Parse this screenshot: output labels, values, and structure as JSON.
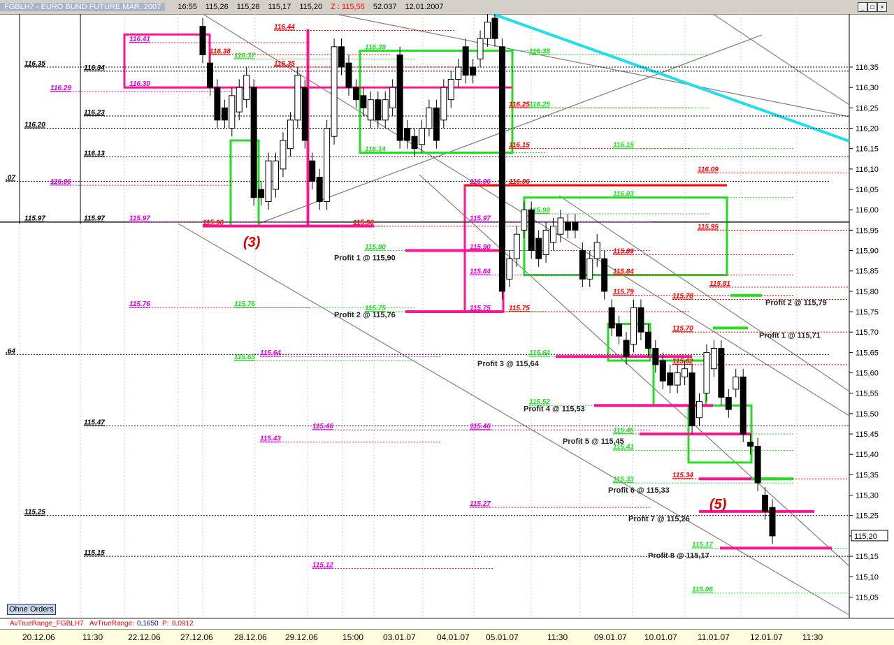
{
  "window": {
    "title": "FGBLH7 - EURO BUND FUTURE MAR. 2007",
    "time": "16:55",
    "open": "115,26",
    "high": "115,28",
    "low": "115,17",
    "close": "115,20",
    "z_label": "Z :",
    "z_value": "115,55",
    "volume": "52.037",
    "date": "12.01.2007"
  },
  "button_ohne_orders": "Ohne Orders",
  "indicator": {
    "name": "AvTrueRange_FGBLH7",
    "label": "AvTrueRange:",
    "value": "0,1650",
    "p_label": "P:",
    "p_value": "8,0912"
  },
  "chart_data": {
    "type": "candlestick",
    "y_ticks": [
      "116,35",
      "116,30",
      "116,25",
      "116,20",
      "116,15",
      "116,10",
      "116,05",
      "116,00",
      "115,95",
      "115,90",
      "115,85",
      "115,80",
      "115,75",
      "115,70",
      "115,65",
      "115,60",
      "115,55",
      "115,50",
      "115,45",
      "115,40",
      "115,35",
      "115,30",
      "115,25",
      "115,20",
      "115,15",
      "115,10",
      "115,05"
    ],
    "last_price": "115,20",
    "ylim": [
      115.03,
      116.48
    ],
    "x_ticks": [
      "20.12.06",
      "11:30",
      "22.12.06",
      "27.12.06",
      "28.12.06",
      "29.12.06",
      "15:00",
      "03.01.07",
      "04.01.07",
      "05.01.07",
      "11:30",
      "09.01.07",
      "10.01.07",
      "11.01.07",
      "12.01.07",
      "11:30"
    ],
    "candles": [
      [
        116.45,
        116.38
      ],
      [
        116.36,
        116.3
      ],
      [
        116.3,
        116.22
      ],
      [
        116.25,
        116.22
      ],
      [
        116.2,
        116.28
      ],
      [
        116.24,
        116.3
      ],
      [
        116.27,
        116.33
      ],
      [
        116.3,
        116.03
      ],
      [
        116.05,
        116.03
      ],
      [
        116.02,
        116.12
      ],
      [
        116.05,
        116.12
      ],
      [
        116.1,
        116.17
      ],
      [
        116.15,
        116.22
      ],
      [
        116.22,
        116.33
      ],
      [
        116.3,
        116.17
      ],
      [
        116.12,
        116.07
      ],
      [
        116.08,
        116.02
      ],
      [
        116.02,
        116.2
      ],
      [
        116.18,
        116.4
      ],
      [
        116.4,
        116.35
      ],
      [
        116.36,
        116.3
      ],
      [
        116.3,
        116.27
      ],
      [
        116.28,
        116.25
      ],
      [
        116.22,
        116.27
      ],
      [
        116.27,
        116.22
      ],
      [
        116.22,
        116.27
      ],
      [
        116.25,
        116.3
      ],
      [
        116.38,
        116.17
      ],
      [
        116.2,
        116.17
      ],
      [
        116.18,
        116.15
      ],
      [
        116.16,
        116.2
      ],
      [
        116.2,
        116.25
      ],
      [
        116.25,
        116.17
      ],
      [
        116.22,
        116.3
      ],
      [
        116.27,
        116.32
      ],
      [
        116.32,
        116.35
      ],
      [
        116.4,
        116.33
      ],
      [
        116.35,
        116.33
      ],
      [
        116.37,
        116.42
      ],
      [
        116.42,
        116.46
      ],
      [
        116.47,
        116.42
      ],
      [
        116.4,
        115.8
      ],
      [
        115.83,
        115.88
      ],
      [
        115.88,
        115.94
      ],
      [
        115.95,
        116.0
      ],
      [
        116.0,
        115.9
      ],
      [
        115.93,
        115.88
      ],
      [
        115.89,
        115.95
      ],
      [
        115.92,
        115.96
      ],
      [
        115.94,
        115.98
      ],
      [
        115.97,
        115.95
      ],
      [
        115.97,
        115.95
      ],
      [
        115.9,
        115.83
      ],
      [
        115.83,
        115.88
      ],
      [
        115.88,
        115.92
      ],
      [
        115.88,
        115.8
      ],
      [
        115.76,
        115.71
      ],
      [
        115.72,
        115.69
      ],
      [
        115.68,
        115.64
      ],
      [
        115.67,
        115.76
      ],
      [
        115.76,
        115.7
      ],
      [
        115.7,
        115.66
      ],
      [
        115.66,
        115.62
      ],
      [
        115.63,
        115.58
      ],
      [
        115.6,
        115.57
      ],
      [
        115.57,
        115.6
      ],
      [
        115.59,
        115.61
      ],
      [
        115.6,
        115.47
      ],
      [
        115.49,
        115.53
      ],
      [
        115.55,
        115.65
      ],
      [
        115.61,
        115.66
      ],
      [
        115.66,
        115.54
      ],
      [
        115.54,
        115.51
      ],
      [
        115.56,
        115.59
      ],
      [
        115.59,
        115.45
      ],
      [
        115.43,
        115.42
      ],
      [
        115.42,
        115.33
      ],
      [
        115.3,
        115.26
      ],
      [
        115.27,
        115.2
      ]
    ],
    "levels": [
      {
        "label": "116.35",
        "price": 116.35,
        "color": "#000000"
      },
      {
        "label": "116.20",
        "price": 116.2,
        "color": "#000000"
      },
      {
        "label": "115.97",
        "price": 115.97,
        "color": "#000000"
      },
      {
        "label": "115.25",
        "price": 115.25,
        "color": "#000000"
      },
      {
        "label": "116.34",
        "price": 116.34,
        "color": "#000000"
      },
      {
        "label": "116.23",
        "price": 116.23,
        "color": "#000000"
      },
      {
        "label": "116.13",
        "price": 116.13,
        "color": "#000000"
      },
      {
        "label": "115.97",
        "price": 115.97,
        "color": "#000000"
      },
      {
        "label": "115.47",
        "price": 115.47,
        "color": "#000000"
      },
      {
        "label": "115.15",
        "price": 115.15,
        "color": "#000000"
      },
      {
        "label": ".07",
        "price": 116.07,
        "color": "#000000"
      },
      {
        "label": ".64",
        "price": 115.645,
        "color": "#000000"
      },
      {
        "label": "116.41",
        "price": 116.41,
        "color": "#e000e0"
      },
      {
        "label": "116.29",
        "price": 116.29,
        "color": "#e000e0"
      },
      {
        "label": "116.06",
        "price": 116.06,
        "color": "#e000e0"
      },
      {
        "label": "116.30",
        "price": 116.3,
        "color": "#e000e0"
      },
      {
        "label": "115.97",
        "price": 115.97,
        "color": "#e000e0"
      },
      {
        "label": "115.76",
        "price": 115.76,
        "color": "#e000e0"
      },
      {
        "label": "115.43",
        "price": 115.43,
        "color": "#e000e0"
      },
      {
        "label": "115.46",
        "price": 115.46,
        "color": "#e000e0"
      },
      {
        "label": "115.12",
        "price": 115.12,
        "color": "#e000e0"
      },
      {
        "label": "115.64",
        "price": 115.64,
        "color": "#e000e0"
      },
      {
        "label": "115.97",
        "price": 115.97,
        "color": "#e000e0"
      },
      {
        "label": "115.90",
        "price": 115.9,
        "color": "#e000e0"
      },
      {
        "label": "115.84",
        "price": 115.84,
        "color": "#e000e0"
      },
      {
        "label": "115.75",
        "price": 115.75,
        "color": "#e000e0"
      },
      {
        "label": "115.46",
        "price": 115.46,
        "color": "#e000e0"
      },
      {
        "label": "115.27",
        "price": 115.27,
        "color": "#e000e0"
      },
      {
        "label": "116.06",
        "price": 116.06,
        "color": "#e000e0"
      },
      {
        "label": "116.44",
        "price": 116.44,
        "color": "#ff0000"
      },
      {
        "label": "116.38",
        "price": 116.38,
        "color": "#ff0000"
      },
      {
        "label": "116.35",
        "price": 116.35,
        "color": "#ff0000"
      },
      {
        "label": "116.25",
        "price": 116.25,
        "color": "#ff0000"
      },
      {
        "label": "116.15",
        "price": 116.15,
        "color": "#ff0000"
      },
      {
        "label": "116.06",
        "price": 116.06,
        "color": "#ff0000"
      },
      {
        "label": "115.96",
        "price": 115.96,
        "color": "#ff0000"
      },
      {
        "label": "115.96",
        "price": 115.96,
        "color": "#ff0000"
      },
      {
        "label": "115.75",
        "price": 115.75,
        "color": "#ff0000"
      },
      {
        "label": "116.09",
        "price": 116.09,
        "color": "#ff0000"
      },
      {
        "label": "115.95",
        "price": 115.95,
        "color": "#ff0000"
      },
      {
        "label": "115.89",
        "price": 115.89,
        "color": "#ff0000"
      },
      {
        "label": "115.84",
        "price": 115.84,
        "color": "#ff0000"
      },
      {
        "label": "115.79",
        "price": 115.79,
        "color": "#ff0000"
      },
      {
        "label": "115.78",
        "price": 115.78,
        "color": "#ff0000"
      },
      {
        "label": "115.70",
        "price": 115.7,
        "color": "#ff0000"
      },
      {
        "label": "115.62",
        "price": 115.62,
        "color": "#ff0000"
      },
      {
        "label": "115.81",
        "price": 115.81,
        "color": "#ff0000"
      },
      {
        "label": "115.34",
        "price": 115.34,
        "color": "#ff0000"
      },
      {
        "label": "116.37",
        "price": 116.37,
        "color": "#22dd22"
      },
      {
        "label": "116.39",
        "price": 116.39,
        "color": "#22dd22"
      },
      {
        "label": "116.38",
        "price": 116.38,
        "color": "#22dd22"
      },
      {
        "label": "116.25",
        "price": 116.25,
        "color": "#22dd22"
      },
      {
        "label": "116.14",
        "price": 116.14,
        "color": "#22dd22"
      },
      {
        "label": "116.15",
        "price": 116.15,
        "color": "#22dd22"
      },
      {
        "label": "115.90",
        "price": 115.9,
        "color": "#22dd22"
      },
      {
        "label": "115.76",
        "price": 115.76,
        "color": "#22dd22"
      },
      {
        "label": "115.75",
        "price": 115.75,
        "color": "#22dd22"
      },
      {
        "label": "115.64",
        "price": 115.64,
        "color": "#22dd22"
      },
      {
        "label": "115.63",
        "price": 115.63,
        "color": "#22dd22"
      },
      {
        "label": "115.52",
        "price": 115.52,
        "color": "#22dd22"
      },
      {
        "label": "115.45",
        "price": 115.45,
        "color": "#22dd22"
      },
      {
        "label": "115.41",
        "price": 115.41,
        "color": "#22dd22"
      },
      {
        "label": "115.33",
        "price": 115.33,
        "color": "#22dd22"
      },
      {
        "label": "115.17",
        "price": 115.17,
        "color": "#22dd22"
      },
      {
        "label": "115.06",
        "price": 115.06,
        "color": "#22dd22"
      },
      {
        "label": "115.99",
        "price": 115.99,
        "color": "#22dd22"
      },
      {
        "label": "116.03",
        "price": 116.03,
        "color": "#22dd22"
      }
    ],
    "profit_targets": [
      {
        "label": "Profit 1 @ 115,90",
        "price": 115.9
      },
      {
        "label": "Profit 2 @ 115,76",
        "price": 115.76
      },
      {
        "label": "Profit 3 @ 115,64",
        "price": 115.64
      },
      {
        "label": "Profit 4 @ 115,53",
        "price": 115.53
      },
      {
        "label": "Profit 5 @ 115,45",
        "price": 115.45
      },
      {
        "label": "Profit 6 @ 115,33",
        "price": 115.33
      },
      {
        "label": "Profit 7 @ 115,26",
        "price": 115.26
      },
      {
        "label": "Profit 8 @ 115,17",
        "price": 115.17
      },
      {
        "label": "Profit 2 @ 115,79",
        "price": 115.79
      },
      {
        "label": "Profit 1 @ 115,71",
        "price": 115.71
      }
    ],
    "annotations": [
      "(3)",
      "(5)"
    ],
    "colors": {
      "up": "#ffffff",
      "down": "#000000",
      "target": "#ff1493",
      "box": "#22dd22",
      "trend_cyan": "#22ddee",
      "channel": "#888888"
    }
  }
}
